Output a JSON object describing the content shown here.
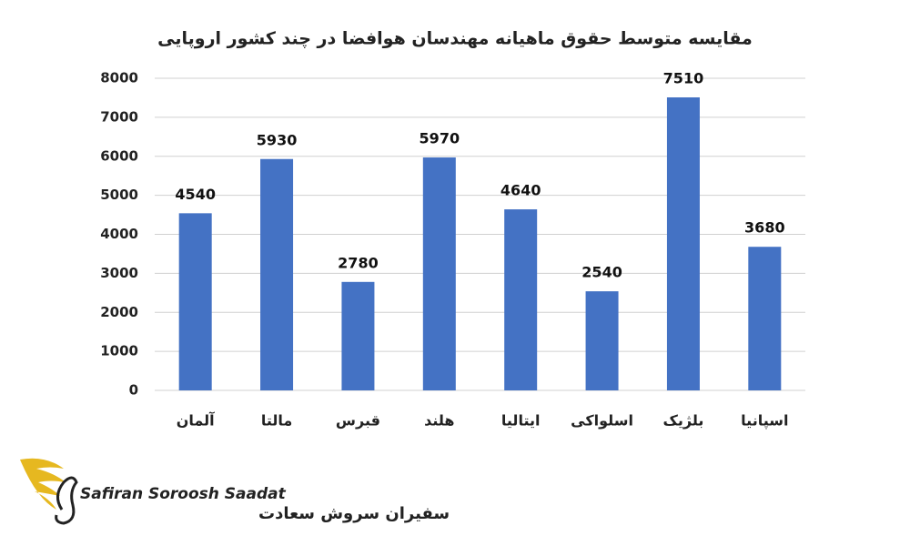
{
  "chart_data": {
    "type": "bar",
    "title": "مقایسه متوسط حقوق ماهیانه مهندسان هوافضا در چند کشور اروپایی",
    "categories": [
      "آلمان",
      "مالتا",
      "قبرس",
      "هلند",
      "ایتالیا",
      "اسلواکی",
      "بلژیک",
      "اسپانیا"
    ],
    "values": [
      4540,
      5930,
      2780,
      5970,
      4640,
      2540,
      7510,
      3680
    ],
    "color": "#4472c4",
    "ylim": [
      0,
      8000
    ],
    "yticks": [
      0,
      1000,
      2000,
      3000,
      4000,
      5000,
      6000,
      7000,
      8000
    ],
    "grid": true
  },
  "logo": {
    "name_en": "Safiran Soroosh Saadat",
    "name_fa": "سفیران سروش سعادت"
  }
}
